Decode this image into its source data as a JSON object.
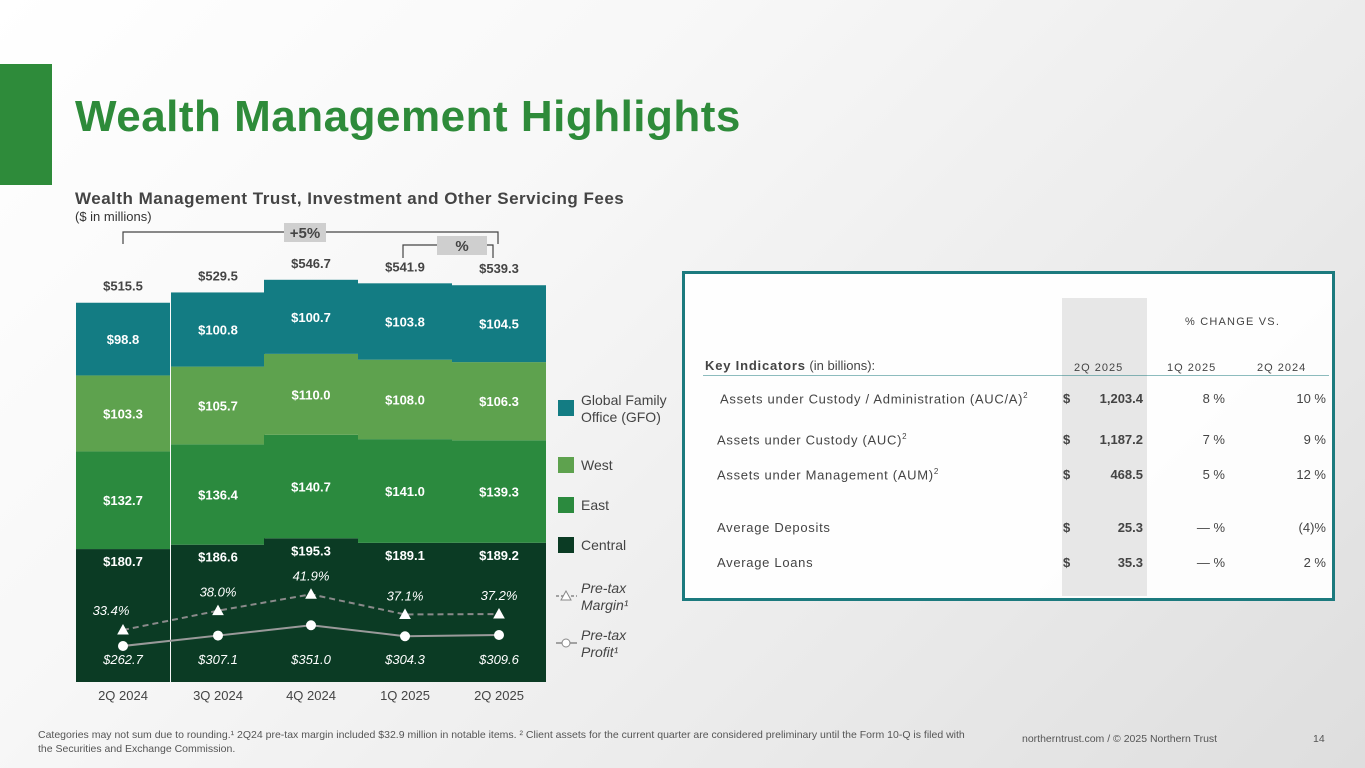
{
  "page": {
    "title": "Wealth Management  Highlights",
    "footnote": "Categories  may not sum due to rounding.¹ 2Q24 pre-tax margin included $32.9 million in notable items. ² Client  assets  for the current  quarter are considered  preliminary  until the Form 10-Q is filed  with the Securities and Exchange Commission.",
    "site": "northerntrust.com / © 2025 Northern Trust",
    "page_number": "14"
  },
  "chart_data": {
    "type": "bar",
    "stacked": true,
    "title": "Wealth Management Trust, Investment and Other Servicing Fees",
    "subtitle": "($ in millions)",
    "categories": [
      "2Q 2024",
      "3Q 2024",
      "4Q 2024",
      "1Q 2025",
      "2Q 2025"
    ],
    "series": [
      {
        "name": "Central",
        "color": "#0b3b24",
        "values": [
          180.7,
          186.6,
          195.3,
          189.1,
          189.2
        ],
        "labels": [
          "$180.7",
          "$186.6",
          "$195.3",
          "$189.1",
          "$189.2"
        ]
      },
      {
        "name": "East",
        "color": "#2b8a3e",
        "values": [
          132.7,
          136.4,
          140.7,
          141.0,
          139.3
        ],
        "labels": [
          "$132.7",
          "$136.4",
          "$140.7",
          "$141.0",
          "$139.3"
        ]
      },
      {
        "name": "West",
        "color": "#5ea24e",
        "values": [
          103.3,
          105.7,
          110.0,
          108.0,
          106.3
        ],
        "labels": [
          "$103.3",
          "$105.7",
          "$110.0",
          "$108.0",
          "$106.3"
        ]
      },
      {
        "name": "Global Family Office (GFO)",
        "color": "#137c83",
        "values": [
          98.8,
          100.8,
          100.7,
          103.8,
          104.5
        ],
        "labels": [
          "$98.8",
          "$100.8",
          "$100.7",
          "$103.8",
          "$104.5"
        ]
      }
    ],
    "totals": [
      515.5,
      529.5,
      546.7,
      541.9,
      539.3
    ],
    "total_labels": [
      "$515.5",
      "$529.5",
      "$546.7",
      "$541.9",
      "$539.3"
    ],
    "lines": [
      {
        "name": "Pre-tax Margin¹",
        "style": "dashed",
        "marker": "triangle",
        "unit": "%",
        "values": [
          33.4,
          38.0,
          41.9,
          37.1,
          37.2
        ],
        "labels": [
          "33.4%",
          "38.0%",
          "41.9%",
          "37.1%",
          "37.2%"
        ]
      },
      {
        "name": "Pre-tax Profit¹",
        "style": "solid",
        "marker": "circle",
        "unit": "$M",
        "values": [
          262.7,
          307.1,
          351.0,
          304.3,
          309.6
        ],
        "labels": [
          "$262.7",
          "$307.1",
          "$351.0",
          "$304.3",
          "$309.6"
        ]
      }
    ],
    "legend": [
      {
        "name_lines": [
          "Global Family",
          "Office (GFO)"
        ],
        "color": "#137c83",
        "kind": "box"
      },
      {
        "name_lines": [
          "West"
        ],
        "color": "#5ea24e",
        "kind": "box"
      },
      {
        "name_lines": [
          "East"
        ],
        "color": "#2b8a3e",
        "kind": "box"
      },
      {
        "name_lines": [
          "Central"
        ],
        "color": "#0b3b24",
        "kind": "box"
      },
      {
        "name_lines": [
          "Pre-tax",
          "Margin¹"
        ],
        "color": "#888888",
        "kind": "triangle"
      },
      {
        "name_lines": [
          "Pre-tax",
          "Profit¹"
        ],
        "color": "#888888",
        "kind": "circle"
      }
    ],
    "legend_position": "right",
    "annotations": [
      {
        "label": "+5%",
        "from": "2Q 2024",
        "to": "2Q 2025"
      },
      {
        "label": "%",
        "from": "1Q 2025",
        "to": "2Q 2025"
      }
    ]
  },
  "kpi": {
    "change_header": "% CHANGE VS.",
    "key_label": "Key Indicators",
    "key_unit": " (in billions):",
    "col_current": "2Q 2025",
    "col_1": "1Q 2025",
    "col_2": "2Q 2024",
    "rows": [
      {
        "label": "Assets under Custody / Administration (AUC/A)",
        "sup": "2",
        "currency": "$",
        "value": "1,203.4",
        "chg1": "8  %",
        "chg2": "10  %"
      },
      {
        "label": "Assets under Custody (AUC)",
        "sup": "2",
        "currency": "$",
        "value": "1,187.2",
        "chg1": "7  %",
        "chg2": "9  %"
      },
      {
        "label": "Assets under Management (AUM)",
        "sup": "2",
        "currency": "$",
        "value": "468.5",
        "chg1": "5  %",
        "chg2": "12  %"
      },
      {
        "label": "Average Deposits",
        "sup": "",
        "currency": "$",
        "value": "25.3",
        "chg1": "—  %",
        "chg2": "(4)%"
      },
      {
        "label": "Average Loans",
        "sup": "",
        "currency": "$",
        "value": "35.3",
        "chg1": "—  %",
        "chg2": "2  %"
      }
    ]
  }
}
